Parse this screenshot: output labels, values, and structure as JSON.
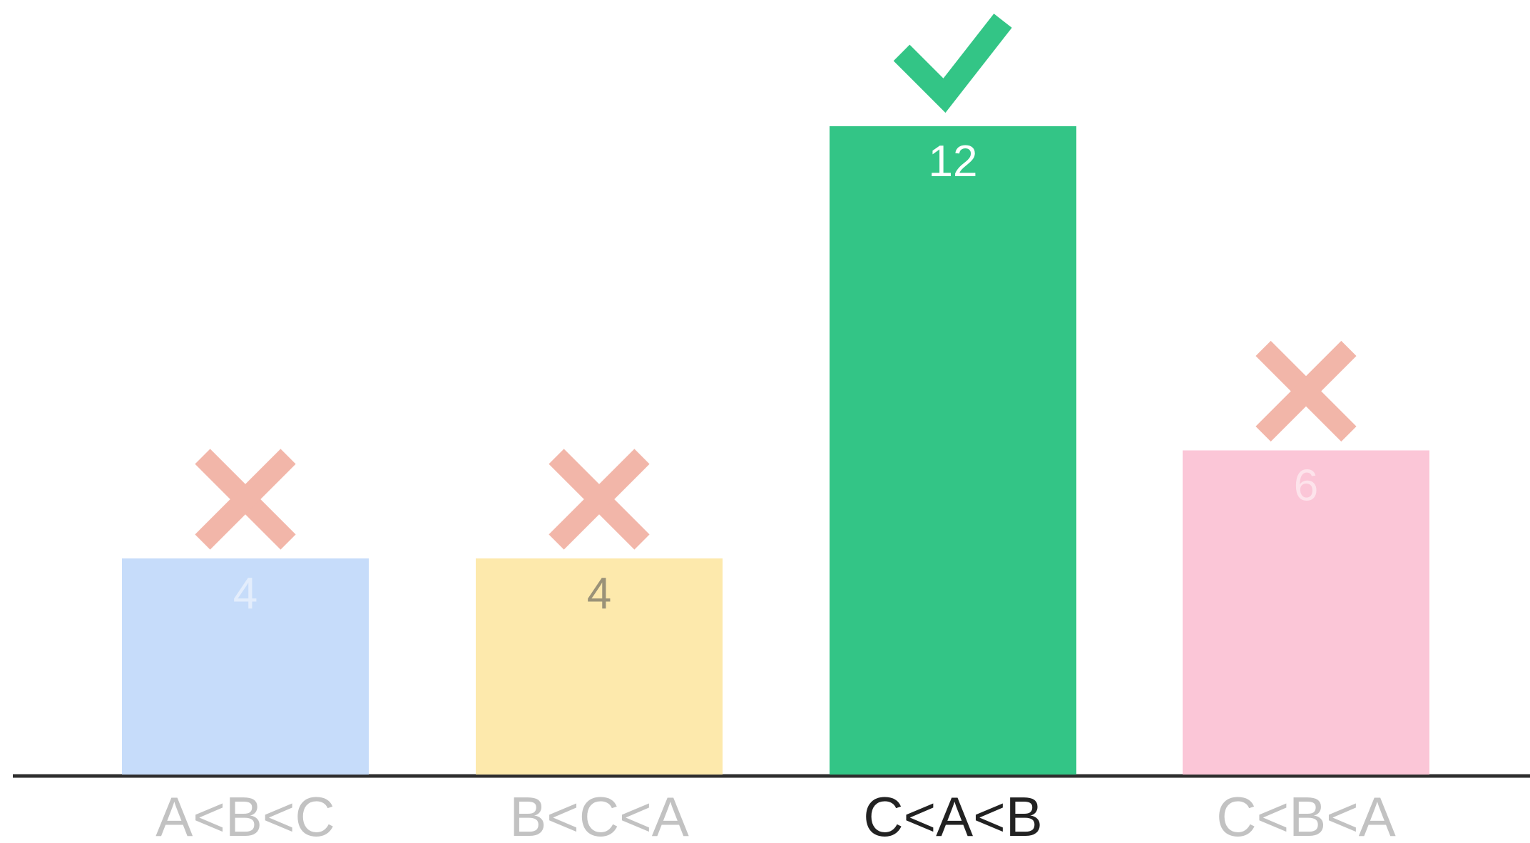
{
  "chart_data": {
    "type": "bar",
    "categories": [
      "A<B<C",
      "B<C<A",
      "C<A<B",
      "C<B<A"
    ],
    "values": [
      4,
      4,
      12,
      6
    ],
    "value_labels": [
      "4",
      "4",
      "12",
      "6"
    ],
    "ylim": [
      0,
      12
    ],
    "grid": false,
    "legend": "none",
    "title": "",
    "xlabel": "",
    "ylabel": "",
    "markers": [
      {
        "category": "A<B<C",
        "icon": "cross-icon"
      },
      {
        "category": "B<C<A",
        "icon": "cross-icon"
      },
      {
        "category": "C<A<B",
        "icon": "check-icon"
      },
      {
        "category": "C<B<A",
        "icon": "cross-icon"
      }
    ],
    "highlighted_category": "C<A<B",
    "colors": {
      "bars": [
        "#c6dcfa",
        "#fde9ac",
        "#33c586",
        "#fbc6d7"
      ],
      "value_labels": [
        "#e3edfc",
        "#9a9278",
        "#ffffff",
        "#fde3eb"
      ],
      "category_labels": [
        "#c2c2c2",
        "#c2c2c2",
        "#222222",
        "#c2c2c2"
      ],
      "cross": "#f2b6a9",
      "check": "#33c586",
      "axis": "#2e2e2e"
    }
  }
}
